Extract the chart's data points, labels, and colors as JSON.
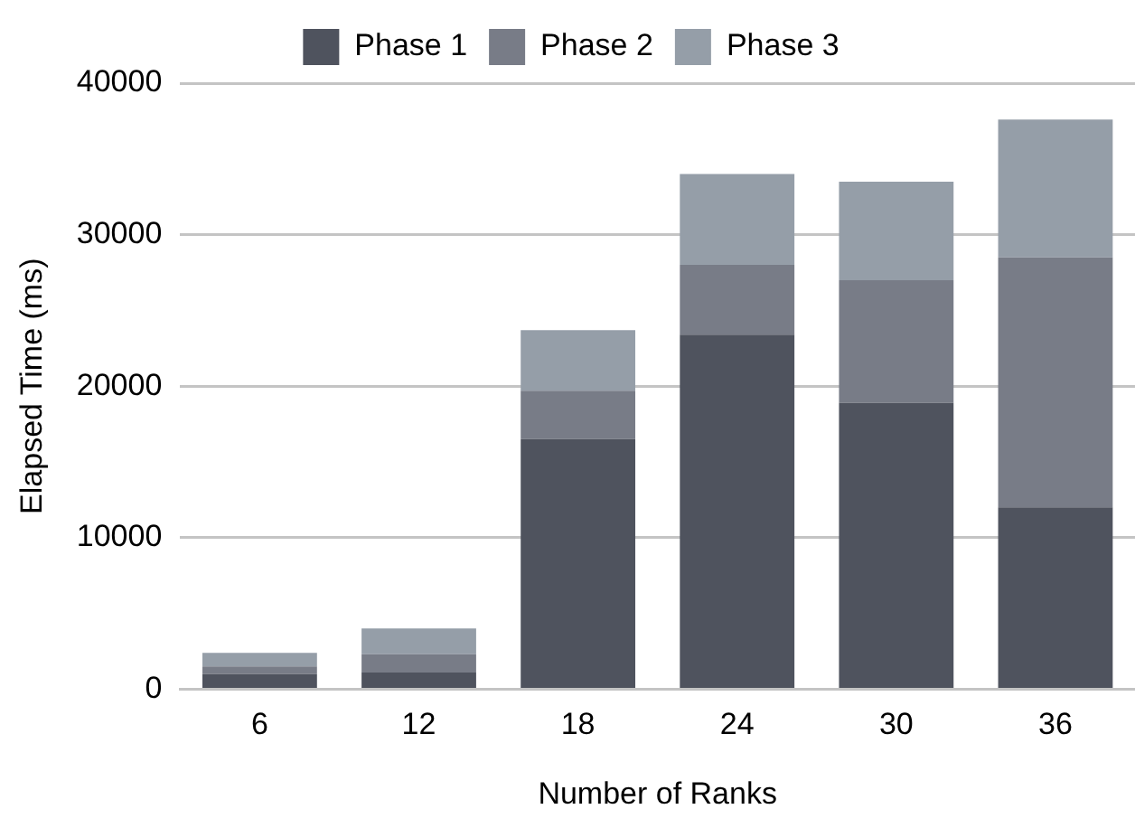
{
  "chart_data": {
    "type": "bar",
    "stacked": true,
    "xlabel": "Number of Ranks",
    "ylabel": "Elapsed Time (ms)",
    "categories": [
      "6",
      "12",
      "18",
      "24",
      "30",
      "36"
    ],
    "series": [
      {
        "name": "Phase 1",
        "color": "#4f535e",
        "values": [
          1000,
          1100,
          16500,
          23400,
          18900,
          12000
        ]
      },
      {
        "name": "Phase 2",
        "color": "#787c87",
        "values": [
          500,
          1200,
          3200,
          4600,
          8100,
          16500
        ]
      },
      {
        "name": "Phase 3",
        "color": "#959ea8",
        "values": [
          900,
          1700,
          4000,
          6000,
          6500,
          9100
        ]
      }
    ],
    "ylim": [
      0,
      40000
    ],
    "yticks": [
      0,
      10000,
      20000,
      30000,
      40000
    ],
    "grid": "y",
    "legend": "top"
  }
}
